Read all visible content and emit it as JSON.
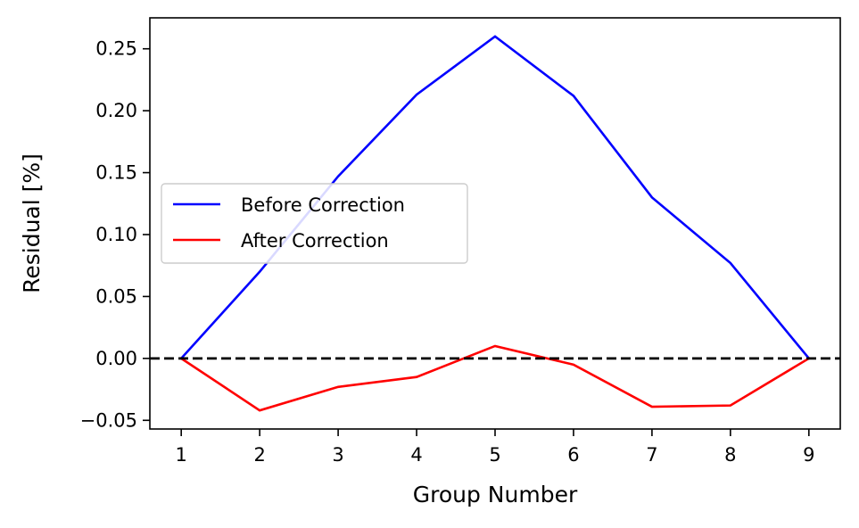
{
  "chart_data": {
    "type": "line",
    "title": "",
    "xlabel": "Group Number",
    "ylabel": "Residual [%]",
    "x": [
      1,
      2,
      3,
      4,
      5,
      6,
      7,
      8,
      9
    ],
    "xlim": [
      0.6,
      9.4
    ],
    "ylim": [
      -0.057,
      0.275
    ],
    "xticks": [
      1,
      2,
      3,
      4,
      5,
      6,
      7,
      8,
      9
    ],
    "xtick_labels": [
      "1",
      "2",
      "3",
      "4",
      "5",
      "6",
      "7",
      "8",
      "9"
    ],
    "yticks": [
      -0.05,
      0.0,
      0.05,
      0.1,
      0.15,
      0.2,
      0.25
    ],
    "ytick_labels": [
      "−0.05",
      "0.00",
      "0.05",
      "0.10",
      "0.15",
      "0.20",
      "0.25"
    ],
    "grid": false,
    "legend_position": "center-left",
    "series": [
      {
        "name": "Before Correction",
        "color": "#0000ff",
        "values": [
          0.0,
          0.07,
          0.147,
          0.213,
          0.26,
          0.212,
          0.13,
          0.077,
          0.0
        ]
      },
      {
        "name": "After Correction",
        "color": "#ff0000",
        "values": [
          0.0,
          -0.042,
          -0.023,
          -0.015,
          0.01,
          -0.005,
          -0.039,
          -0.038,
          0.0
        ]
      }
    ],
    "reference_line": {
      "y": 0.0,
      "color": "#000000",
      "style": "dashed"
    }
  }
}
